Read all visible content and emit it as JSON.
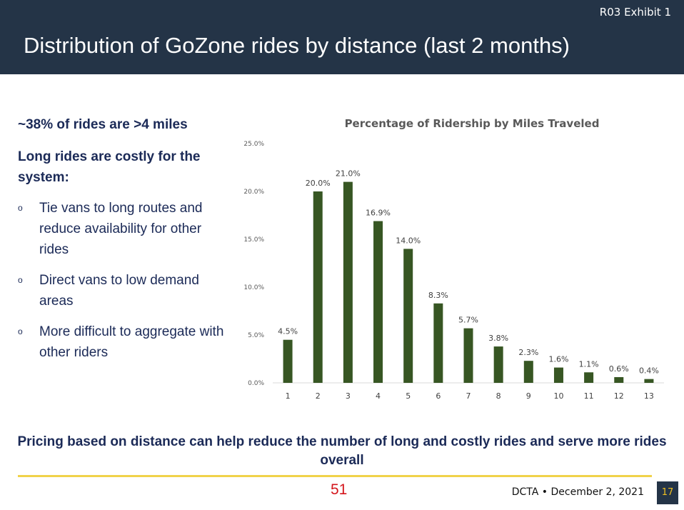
{
  "header": {
    "exhibit_label": "R03 Exhibit 1",
    "title": "Distribution of GoZone rides by distance (last 2 months)"
  },
  "left_panel": {
    "lead": "~38% of rides are >4 miles",
    "subhead": "Long rides are costly for the system:",
    "bullet_marker": "o",
    "bullets": [
      "Tie vans to long routes and reduce availability for other rides",
      "Direct vans to low demand areas",
      "More difficult to aggregate with other riders"
    ]
  },
  "bottom_message": "Pricing based on distance can help reduce the number of long and costly rides and serve more rides overall",
  "footer": {
    "page_number": "51",
    "org_date": "DCTA • December 2, 2021",
    "slide_number": "17"
  },
  "colors": {
    "header_bg": "#243447",
    "bar": "#375623",
    "accent_line": "#f0d24a",
    "text_navy": "#1b2a57"
  },
  "chart_data": {
    "type": "bar",
    "title": "Percentage of Ridership by Miles Traveled",
    "xlabel": "",
    "ylabel": "",
    "categories": [
      "1",
      "2",
      "3",
      "4",
      "5",
      "6",
      "7",
      "8",
      "9",
      "10",
      "11",
      "12",
      "13"
    ],
    "values": [
      4.5,
      20.0,
      21.0,
      16.9,
      14.0,
      8.3,
      5.7,
      3.8,
      2.3,
      1.6,
      1.1,
      0.6,
      0.4
    ],
    "data_labels": [
      "4.5%",
      "20.0%",
      "21.0%",
      "16.9%",
      "14.0%",
      "8.3%",
      "5.7%",
      "3.8%",
      "2.3%",
      "1.6%",
      "1.1%",
      "0.6%",
      "0.4%"
    ],
    "ylim": [
      0,
      25
    ],
    "yticks": [
      0,
      5,
      10,
      15,
      20,
      25
    ],
    "ytick_labels": [
      "0.0%",
      "5.0%",
      "10.0%",
      "15.0%",
      "20.0%",
      "25.0%"
    ],
    "grid": false,
    "legend": "none"
  }
}
